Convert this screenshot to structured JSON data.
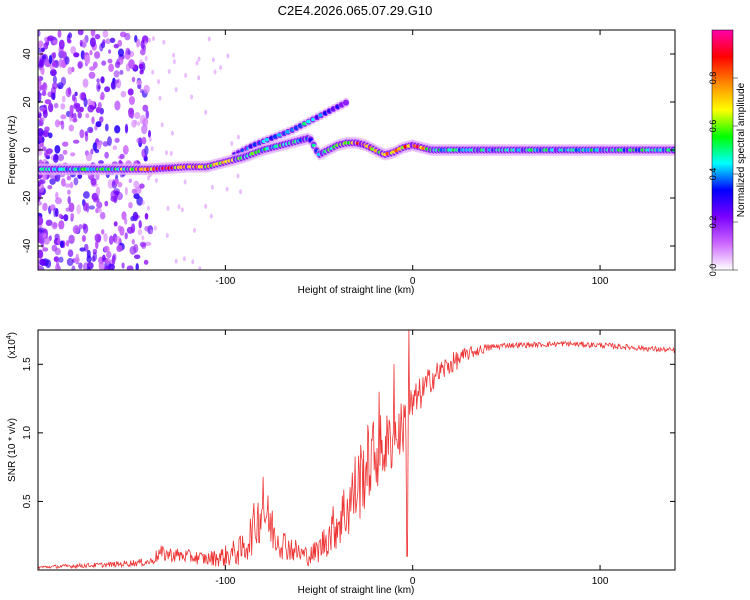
{
  "title": "C2E4.2026.065.07.29.G10",
  "chart_data": [
    {
      "type": "heatmap",
      "name": "spectrogram",
      "xlabel": "Height of straight line (km)",
      "ylabel": "Frequency (Hz)",
      "xlim": [
        -200,
        140
      ],
      "ylim": [
        -50,
        50
      ],
      "x_ticks": [
        -100,
        0,
        100
      ],
      "x_tick_labels": [
        "-100",
        "0",
        "100"
      ],
      "y_ticks": [
        -40,
        -20,
        0,
        20,
        40
      ],
      "y_tick_labels": [
        "-40",
        "-20",
        "0",
        "20",
        "40"
      ],
      "colorbar": {
        "label": "Normalized spectral amplitude",
        "range": [
          0,
          1
        ],
        "ticks": [
          0.0,
          0.2,
          0.4,
          0.6,
          0.8
        ],
        "tick_labels": [
          "0.0",
          "0.2",
          "0.4",
          "0.6",
          "0.8"
        ],
        "colormap": [
          "#ffffff",
          "#cc66ff",
          "#7a00ff",
          "#0000ff",
          "#00ffff",
          "#00ff00",
          "#ffff00",
          "#ff8800",
          "#ff0000",
          "#ff00aa"
        ]
      },
      "ridge": {
        "x": [
          -200,
          -180,
          -160,
          -140,
          -120,
          -110,
          -100,
          -90,
          -80,
          -70,
          -60,
          -55,
          -50,
          -45,
          -40,
          -35,
          -30,
          -25,
          -20,
          -15,
          -10,
          -5,
          0,
          5,
          10,
          20,
          40,
          60,
          80,
          100,
          120,
          140
        ],
        "freq": [
          -8,
          -8,
          -8,
          -8,
          -7,
          -7,
          -5,
          -3,
          0,
          2,
          4,
          5,
          -2,
          0,
          2,
          3,
          3,
          2,
          0,
          -2,
          -1,
          1,
          2,
          1,
          0,
          0,
          0,
          0,
          0,
          0,
          0,
          0
        ],
        "amplitude": [
          0.45,
          0.5,
          0.55,
          0.85,
          0.8,
          0.75,
          0.7,
          0.6,
          0.55,
          0.5,
          0.5,
          0.45,
          0.45,
          0.55,
          0.6,
          0.75,
          0.85,
          0.8,
          0.7,
          0.75,
          0.8,
          0.85,
          0.9,
          0.85,
          0.55,
          0.5,
          0.5,
          0.5,
          0.5,
          0.5,
          0.5,
          0.5
        ]
      },
      "secondary_ridge": {
        "x": [
          -95,
          -85,
          -75,
          -65,
          -60,
          -55,
          -50,
          -45,
          -40,
          -35
        ],
        "freq": [
          -2,
          2,
          5,
          8,
          10,
          12,
          14,
          16,
          18,
          20
        ],
        "amplitude": [
          0.35,
          0.4,
          0.45,
          0.5,
          0.5,
          0.45,
          0.4,
          0.35,
          0.3,
          0.25
        ]
      }
    },
    {
      "type": "line",
      "name": "snr",
      "xlabel": "Height of straight line (km)",
      "ylabel": "SNR (10 * v/v)",
      "y_scale_label": "(x10",
      "y_scale_exponent": "4",
      "xlim": [
        -200,
        140
      ],
      "ylim": [
        0,
        1.75
      ],
      "x_ticks": [
        -100,
        0,
        100
      ],
      "x_tick_labels": [
        "-100",
        "0",
        "100"
      ],
      "y_ticks": [
        0.5,
        1.0,
        1.5
      ],
      "y_tick_labels": [
        "0.5",
        "1.0",
        "1.5"
      ],
      "color": "#ee3333",
      "envelope": {
        "x": [
          -200,
          -160,
          -140,
          -135,
          -120,
          -110,
          -100,
          -90,
          -85,
          -80,
          -75,
          -70,
          -60,
          -55,
          -50,
          -45,
          -40,
          -35,
          -30,
          -25,
          -20,
          -15,
          -10,
          -5,
          -2,
          0,
          5,
          10,
          20,
          30,
          40,
          50,
          60,
          80,
          100,
          120,
          140
        ],
        "mean": [
          0.02,
          0.04,
          0.06,
          0.12,
          0.1,
          0.08,
          0.1,
          0.15,
          0.3,
          0.45,
          0.3,
          0.2,
          0.12,
          0.1,
          0.15,
          0.25,
          0.35,
          0.45,
          0.6,
          0.75,
          0.85,
          0.9,
          0.95,
          1.05,
          1.15,
          1.2,
          1.3,
          1.4,
          1.5,
          1.58,
          1.62,
          1.64,
          1.64,
          1.65,
          1.64,
          1.62,
          1.6
        ],
        "spread": [
          0.01,
          0.02,
          0.03,
          0.06,
          0.05,
          0.05,
          0.08,
          0.12,
          0.18,
          0.22,
          0.18,
          0.12,
          0.08,
          0.07,
          0.1,
          0.15,
          0.2,
          0.25,
          0.3,
          0.3,
          0.28,
          0.25,
          0.22,
          0.2,
          0.2,
          0.15,
          0.12,
          0.1,
          0.08,
          0.05,
          0.03,
          0.02,
          0.02,
          0.02,
          0.02,
          0.02,
          0.02
        ]
      },
      "spikes": [
        {
          "x": -2,
          "value": 1.75
        },
        {
          "x": -10,
          "value": 1.5
        },
        {
          "x": -18,
          "value": 1.3
        },
        {
          "x": -3,
          "value": 0.1
        },
        {
          "x": -80,
          "value": 0.68
        }
      ]
    }
  ]
}
